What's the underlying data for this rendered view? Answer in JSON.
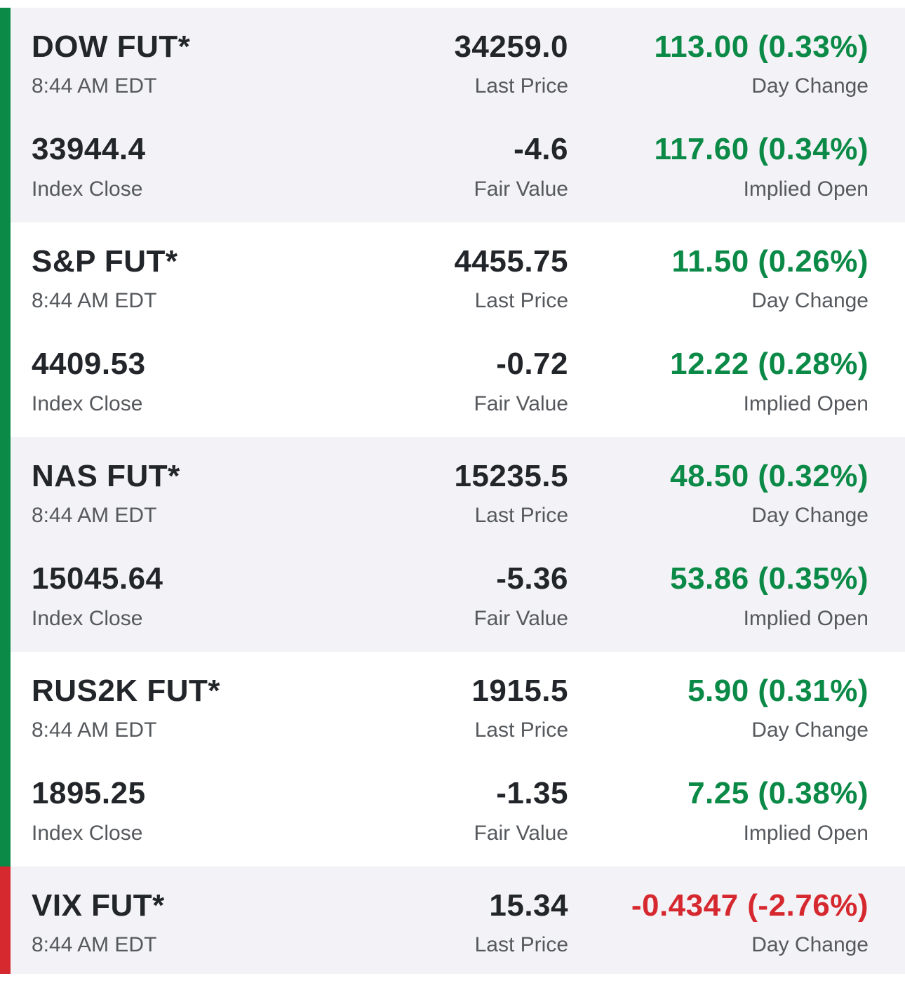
{
  "colors": {
    "positive": "#0b8a47",
    "negative": "#d6282f",
    "shaded_row": "#f3f3f7"
  },
  "labels": {
    "last_price": "Last Price",
    "day_change": "Day Change",
    "index_close": "Index Close",
    "fair_value": "Fair Value",
    "implied_open": "Implied Open"
  },
  "futures": [
    {
      "name": "DOW FUT*",
      "time": "8:44 AM EDT",
      "last_price": "34259.0",
      "day_change": "113.00 (0.33%)",
      "index_close": "33944.4",
      "fair_value": "-4.6",
      "implied_open": "117.60 (0.34%)"
    },
    {
      "name": "S&P FUT*",
      "time": "8:44 AM EDT",
      "last_price": "4455.75",
      "day_change": "11.50 (0.26%)",
      "index_close": "4409.53",
      "fair_value": "-0.72",
      "implied_open": "12.22 (0.28%)"
    },
    {
      "name": "NAS FUT*",
      "time": "8:44 AM EDT",
      "last_price": "15235.5",
      "day_change": "48.50 (0.32%)",
      "index_close": "15045.64",
      "fair_value": "-5.36",
      "implied_open": "53.86 (0.35%)"
    },
    {
      "name": "RUS2K FUT*",
      "time": "8:44 AM EDT",
      "last_price": "1915.5",
      "day_change": "5.90 (0.31%)",
      "index_close": "1895.25",
      "fair_value": "-1.35",
      "implied_open": "7.25 (0.38%)"
    },
    {
      "name": "VIX FUT*",
      "time": "8:44 AM EDT",
      "last_price": "15.34",
      "day_change": "-0.4347 (-2.76%)"
    }
  ]
}
